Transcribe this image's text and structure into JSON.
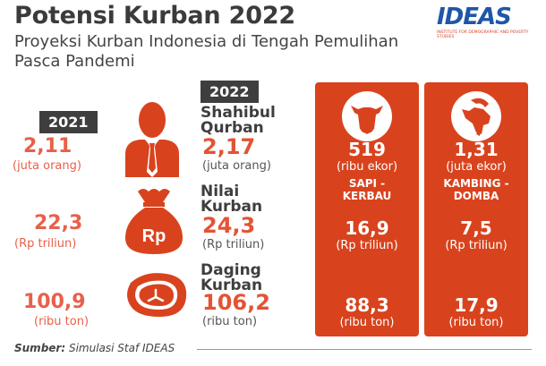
{
  "header": {
    "title": "Potensi Kurban 2022",
    "subtitle": "Proyeksi Kurban Indonesia di Tengah Pemulihan Pasca Pandemi"
  },
  "logo": {
    "text": "IDEAS",
    "tagline": "Institute for Demographic and Poverty Studies"
  },
  "years": {
    "y2021": "2021",
    "y2022": "2022"
  },
  "rows": {
    "shahibul": {
      "label": "Shahibul Qurban",
      "v2021": "2,11",
      "u2021": "(juta orang)",
      "v2022": "2,17",
      "u2022": "(juta orang)"
    },
    "nilai": {
      "label": "Nilai Kurban",
      "v2021": "22,3",
      "u2021": "(Rp triliun)",
      "v2022": "24,3",
      "u2022": "(Rp triliun)"
    },
    "daging": {
      "label": "Daging Kurban",
      "v2021": "100,9",
      "u2021": "(ribu ton)",
      "v2022": "106,2",
      "u2022": "(ribu ton)"
    }
  },
  "columns": {
    "sapi": {
      "count": "519",
      "count_unit": "(ribu ekor)",
      "name": "SAPI - KERBAU",
      "nilai": "16,9",
      "nilai_unit": "(Rp triliun)",
      "daging": "88,3",
      "daging_unit": "(ribu ton)"
    },
    "kambing": {
      "count": "1,31",
      "count_unit": "(juta ekor)",
      "name": "KAMBING - DOMBA",
      "nilai": "7,5",
      "nilai_unit": "(Rp triliun)",
      "daging": "17,9",
      "daging_unit": "(ribu ton)"
    }
  },
  "icons": {
    "person": "person-icon",
    "money_bag": "money-bag-icon",
    "meat": "meat-icon",
    "cow": "cow-icon",
    "goat": "goat-icon",
    "rp_text": "Rp"
  },
  "source": {
    "prefix": "Sumber:",
    "text": "Simulasi Staf IDEAS"
  },
  "colors": {
    "accent": "#d8431e",
    "light_accent": "#e8604a",
    "dark": "#3e3e3e"
  }
}
